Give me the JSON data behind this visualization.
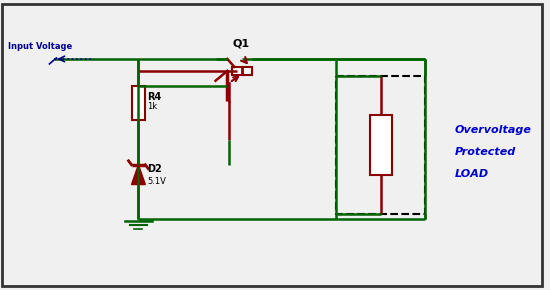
{
  "bg_color": "#f0f0f0",
  "wire_color": "#006400",
  "component_color": "#8B0000",
  "label_color": "#00008B",
  "input_label": "Input Voltage",
  "q1_label": "Q1",
  "r4_label": "R4",
  "r4_value": "1k",
  "d2_label": "D2",
  "d2_value": "5.1V",
  "load_text": [
    "Overvoltage",
    "Protected",
    "LOAD"
  ],
  "border_color": "#333333",
  "title_color": "#0000CD"
}
